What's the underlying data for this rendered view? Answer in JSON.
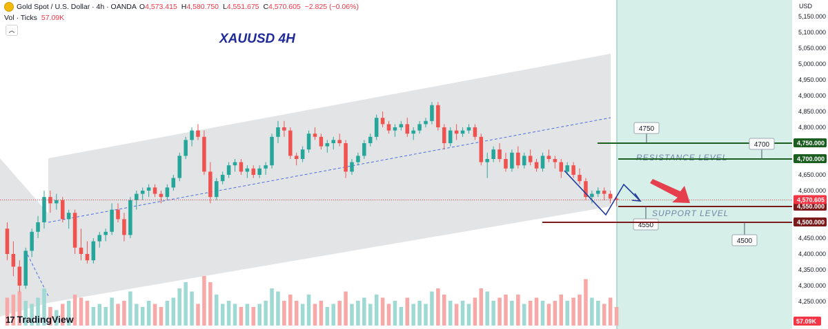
{
  "header": {
    "symbol": "Gold Spot / U.S. Dollar · 4h · OANDA",
    "o_label": "O",
    "o_val": "4,573.415",
    "h_label": "H",
    "h_val": "4,580.750",
    "l_label": "L",
    "l_val": "4,551.675",
    "c_label": "C",
    "c_val": "4,570.605",
    "change": "−2.825 (−0.06%)"
  },
  "volume": {
    "label": "Vol · Ticks",
    "value": "57.09K"
  },
  "brand": {
    "name": "TradingView"
  },
  "colors": {
    "up": "#26a69a",
    "down": "#ef5350",
    "vol_up": "#9fd9d3",
    "vol_down": "#f7a9a7",
    "channel": "#e3e4e6",
    "projection_zone": "#d6efe9",
    "resistance_line": "#1b5e20",
    "support_line": "#7b1a1a",
    "title": "#1f2a9b",
    "annotation_text": "#6f84a8"
  },
  "chart_data": {
    "type": "candlestick",
    "title": "XAUUSD 4H",
    "ylabel": "USD",
    "ylim": [
      4210,
      5190
    ],
    "y_ticks": [
      "5,150.000",
      "5,100.000",
      "5,050.000",
      "5,000.000",
      "4,950.000",
      "4,900.000",
      "4,850.000",
      "4,800.000",
      "4,750.000",
      "4,700.000",
      "4,650.000",
      "4,600.000",
      "4,550.000",
      "4,500.000",
      "4,450.000",
      "4,400.000",
      "4,350.000",
      "4,300.000",
      "4,250.000"
    ],
    "last_price": {
      "value": 4570.605,
      "label": "4,570.605"
    },
    "current_volume_label": "57.09K",
    "levels": [
      {
        "name": "RESISTANCE LEVEL",
        "price": 4750,
        "price_label": "4,750.000",
        "note": "4750",
        "kind": "resistance"
      },
      {
        "name": "",
        "price": 4700,
        "price_label": "4,700.000",
        "note": "4700",
        "kind": "resistance"
      },
      {
        "name": "SUPPORT LEVEL",
        "price": 4550,
        "price_label": "4,550.000",
        "note": "4550",
        "kind": "support"
      },
      {
        "name": "",
        "price": 4500,
        "price_label": "4,500.000",
        "note": "4500",
        "kind": "support"
      }
    ],
    "channel_label_texts": {
      "resistance": "RESISTANCE LEVEL",
      "support": "SUPPORT LEVEL"
    },
    "candles": [
      [
        4480,
        4500,
        4380,
        4400
      ],
      [
        4400,
        4440,
        4330,
        4360
      ],
      [
        4360,
        4380,
        4280,
        4300
      ],
      [
        4300,
        4420,
        4290,
        4410
      ],
      [
        4410,
        4480,
        4390,
        4470
      ],
      [
        4470,
        4520,
        4450,
        4500
      ],
      [
        4500,
        4600,
        4480,
        4580
      ],
      [
        4580,
        4600,
        4530,
        4560
      ],
      [
        4560,
        4590,
        4540,
        4570
      ],
      [
        4570,
        4580,
        4500,
        4510
      ],
      [
        4510,
        4540,
        4480,
        4530
      ],
      [
        4530,
        4540,
        4400,
        4420
      ],
      [
        4420,
        4480,
        4380,
        4400
      ],
      [
        4400,
        4440,
        4370,
        4380
      ],
      [
        4380,
        4450,
        4370,
        4440
      ],
      [
        4440,
        4470,
        4420,
        4460
      ],
      [
        4460,
        4480,
        4440,
        4470
      ],
      [
        4470,
        4560,
        4460,
        4540
      ],
      [
        4540,
        4560,
        4500,
        4510
      ],
      [
        4510,
        4530,
        4440,
        4460
      ],
      [
        4460,
        4580,
        4450,
        4570
      ],
      [
        4570,
        4600,
        4540,
        4590
      ],
      [
        4590,
        4610,
        4570,
        4600
      ],
      [
        4600,
        4620,
        4580,
        4610
      ],
      [
        4610,
        4620,
        4580,
        4590
      ],
      [
        4590,
        4600,
        4560,
        4580
      ],
      [
        4580,
        4620,
        4570,
        4610
      ],
      [
        4610,
        4650,
        4600,
        4640
      ],
      [
        4640,
        4720,
        4630,
        4710
      ],
      [
        4710,
        4770,
        4700,
        4760
      ],
      [
        4760,
        4800,
        4740,
        4790
      ],
      [
        4790,
        4810,
        4760,
        4770
      ],
      [
        4770,
        4790,
        4650,
        4660
      ],
      [
        4660,
        4690,
        4560,
        4580
      ],
      [
        4580,
        4640,
        4570,
        4630
      ],
      [
        4630,
        4660,
        4620,
        4650
      ],
      [
        4650,
        4690,
        4640,
        4680
      ],
      [
        4680,
        4700,
        4660,
        4690
      ],
      [
        4690,
        4700,
        4650,
        4660
      ],
      [
        4660,
        4680,
        4640,
        4670
      ],
      [
        4670,
        4680,
        4640,
        4650
      ],
      [
        4650,
        4680,
        4640,
        4670
      ],
      [
        4670,
        4690,
        4650,
        4680
      ],
      [
        4680,
        4780,
        4670,
        4770
      ],
      [
        4770,
        4820,
        4750,
        4800
      ],
      [
        4800,
        4820,
        4770,
        4790
      ],
      [
        4790,
        4800,
        4700,
        4710
      ],
      [
        4710,
        4720,
        4680,
        4700
      ],
      [
        4700,
        4740,
        4690,
        4730
      ],
      [
        4730,
        4790,
        4720,
        4780
      ],
      [
        4780,
        4800,
        4760,
        4770
      ],
      [
        4770,
        4780,
        4730,
        4740
      ],
      [
        4740,
        4760,
        4720,
        4750
      ],
      [
        4750,
        4770,
        4730,
        4760
      ],
      [
        4760,
        4780,
        4740,
        4750
      ],
      [
        4750,
        4760,
        4640,
        4660
      ],
      [
        4660,
        4700,
        4650,
        4690
      ],
      [
        4690,
        4720,
        4680,
        4710
      ],
      [
        4710,
        4760,
        4700,
        4750
      ],
      [
        4750,
        4780,
        4740,
        4770
      ],
      [
        4770,
        4840,
        4760,
        4830
      ],
      [
        4830,
        4850,
        4800,
        4810
      ],
      [
        4810,
        4820,
        4780,
        4790
      ],
      [
        4790,
        4810,
        4770,
        4800
      ],
      [
        4800,
        4820,
        4790,
        4810
      ],
      [
        4810,
        4830,
        4770,
        4780
      ],
      [
        4780,
        4800,
        4760,
        4790
      ],
      [
        4790,
        4820,
        4780,
        4810
      ],
      [
        4810,
        4830,
        4800,
        4820
      ],
      [
        4820,
        4880,
        4810,
        4870
      ],
      [
        4870,
        4880,
        4790,
        4800
      ],
      [
        4800,
        4810,
        4730,
        4750
      ],
      [
        4750,
        4800,
        4740,
        4790
      ],
      [
        4790,
        4810,
        4760,
        4780
      ],
      [
        4780,
        4800,
        4770,
        4790
      ],
      [
        4790,
        4810,
        4780,
        4800
      ],
      [
        4800,
        4810,
        4760,
        4770
      ],
      [
        4770,
        4780,
        4680,
        4690
      ],
      [
        4690,
        4720,
        4640,
        4700
      ],
      [
        4700,
        4740,
        4690,
        4730
      ],
      [
        4730,
        4750,
        4690,
        4700
      ],
      [
        4700,
        4720,
        4660,
        4670
      ],
      [
        4670,
        4730,
        4660,
        4720
      ],
      [
        4720,
        4740,
        4670,
        4680
      ],
      [
        4680,
        4720,
        4670,
        4710
      ],
      [
        4710,
        4730,
        4680,
        4690
      ],
      [
        4690,
        4700,
        4660,
        4670
      ],
      [
        4670,
        4720,
        4660,
        4710
      ],
      [
        4710,
        4730,
        4690,
        4700
      ],
      [
        4700,
        4710,
        4670,
        4690
      ],
      [
        4690,
        4700,
        4640,
        4660
      ],
      [
        4660,
        4690,
        4650,
        4680
      ],
      [
        4680,
        4690,
        4640,
        4650
      ],
      [
        4650,
        4670,
        4620,
        4630
      ],
      [
        4630,
        4640,
        4570,
        4580
      ],
      [
        4580,
        4600,
        4560,
        4590
      ],
      [
        4590,
        4610,
        4580,
        4600
      ],
      [
        4600,
        4610,
        4570,
        4590
      ],
      [
        4590,
        4600,
        4560,
        4575
      ],
      [
        4575,
        4581,
        4551,
        4571
      ]
    ],
    "volumes": [
      0.45,
      0.5,
      0.55,
      0.4,
      0.35,
      0.45,
      0.6,
      0.3,
      0.25,
      0.35,
      0.4,
      0.5,
      0.45,
      0.4,
      0.3,
      0.35,
      0.3,
      0.45,
      0.35,
      0.4,
      0.55,
      0.35,
      0.3,
      0.4,
      0.35,
      0.3,
      0.4,
      0.45,
      0.6,
      0.7,
      0.55,
      0.35,
      0.8,
      0.7,
      0.5,
      0.35,
      0.4,
      0.35,
      0.3,
      0.35,
      0.3,
      0.35,
      0.4,
      0.6,
      0.55,
      0.4,
      0.5,
      0.4,
      0.35,
      0.5,
      0.35,
      0.4,
      0.3,
      0.35,
      0.4,
      0.55,
      0.35,
      0.4,
      0.45,
      0.35,
      0.5,
      0.45,
      0.35,
      0.4,
      0.3,
      0.45,
      0.35,
      0.4,
      0.35,
      0.55,
      0.6,
      0.5,
      0.4,
      0.35,
      0.4,
      0.35,
      0.45,
      0.6,
      0.55,
      0.4,
      0.45,
      0.5,
      0.4,
      0.5,
      0.35,
      0.4,
      0.45,
      0.4,
      0.35,
      0.4,
      0.5,
      0.4,
      0.45,
      0.5,
      0.75,
      0.45,
      0.4,
      0.35,
      0.45,
      0.3
    ]
  }
}
